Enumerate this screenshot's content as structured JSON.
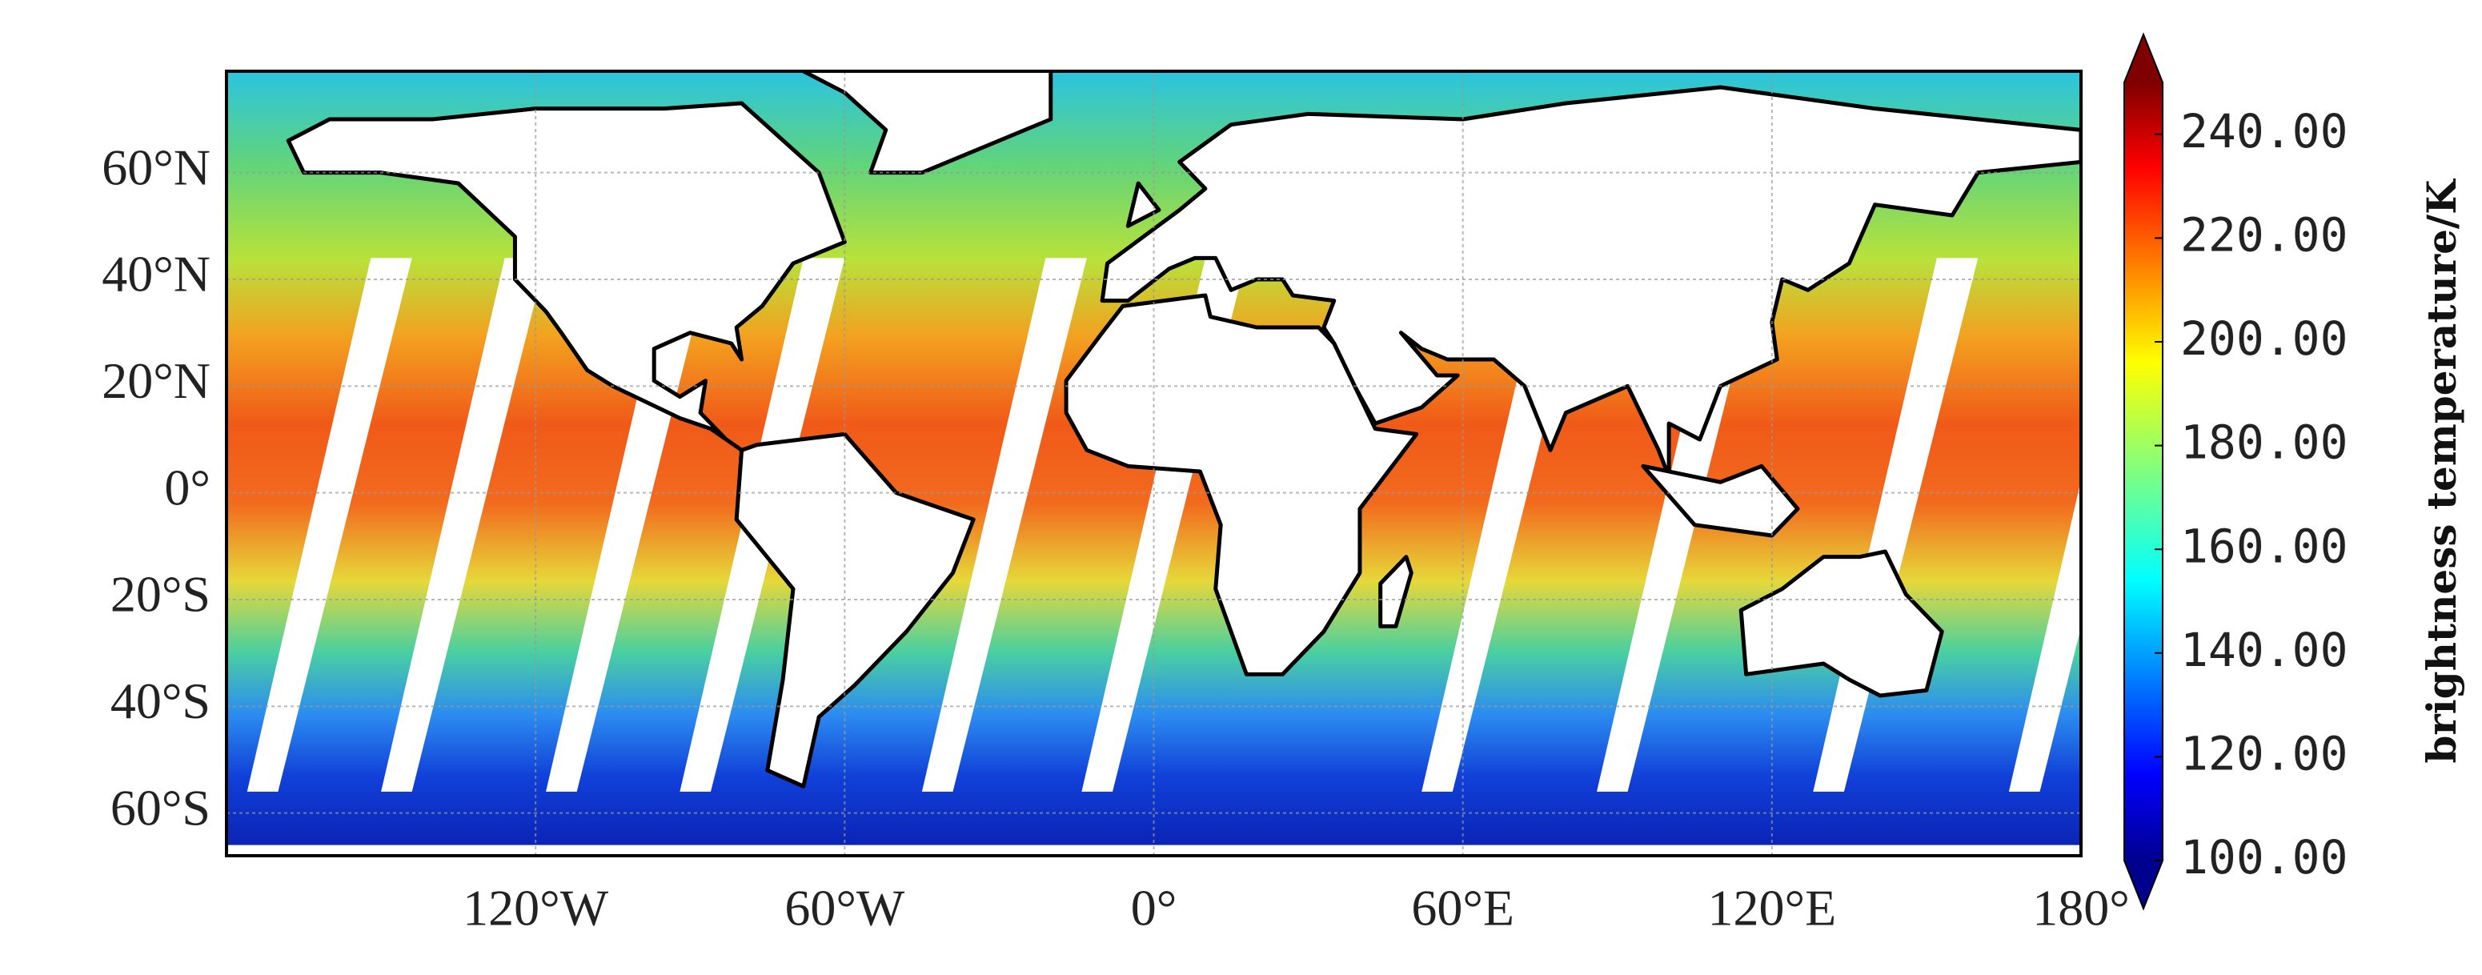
{
  "map": {
    "xlim": [
      -180,
      180
    ],
    "ylim": [
      -68,
      79
    ],
    "xticks": [
      {
        "value": -120,
        "label": "120°W"
      },
      {
        "value": -60,
        "label": "60°W"
      },
      {
        "value": 0,
        "label": "0°"
      },
      {
        "value": 60,
        "label": "60°E"
      },
      {
        "value": 120,
        "label": "120°E"
      },
      {
        "value": 180,
        "label": "180°"
      }
    ],
    "yticks": [
      {
        "value": 60,
        "label": "60°N"
      },
      {
        "value": 40,
        "label": "40°N"
      },
      {
        "value": 20,
        "label": "20°N"
      },
      {
        "value": 0,
        "label": "0°"
      },
      {
        "value": -20,
        "label": "20°S"
      },
      {
        "value": -40,
        "label": "40°S"
      },
      {
        "value": -60,
        "label": "60°S"
      }
    ],
    "grid": true,
    "colorbar": {
      "label": "brightness temperature/K",
      "lim": [
        100,
        250
      ],
      "ticks": [
        {
          "value": 100,
          "label": "100.00"
        },
        {
          "value": 120,
          "label": "120.00"
        },
        {
          "value": 140,
          "label": "140.00"
        },
        {
          "value": 160,
          "label": "160.00"
        },
        {
          "value": 180,
          "label": "180.00"
        },
        {
          "value": 200,
          "label": "200.00"
        },
        {
          "value": 220,
          "label": "220.00"
        },
        {
          "value": 240,
          "label": "240.00"
        }
      ],
      "colormap": "jet"
    }
  }
}
